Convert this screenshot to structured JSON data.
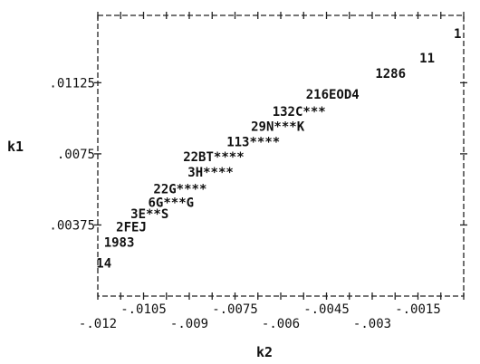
{
  "chart_data": {
    "type": "scatter",
    "title": "",
    "xlabel": "k2",
    "ylabel": "k1",
    "xlim": [
      -0.012,
      0.0
    ],
    "ylim": [
      0.0,
      0.0148
    ],
    "grid": false,
    "legend": "none",
    "x_ticks_lower": [
      "-.012",
      "-.009",
      "-.006",
      "-.003"
    ],
    "x_ticks_upper": [
      "-.0105",
      "-.0075",
      "-.0045",
      "-.0015"
    ],
    "y_ticks": [
      ".00375",
      ".0075",
      ".01125"
    ],
    "points": [
      {
        "label": "1",
        "x": -0.0002,
        "y": 0.0138
      },
      {
        "label": "11",
        "x": -0.0012,
        "y": 0.0125
      },
      {
        "label": "1286",
        "x": -0.0024,
        "y": 0.0117
      },
      {
        "label": "216EOD4",
        "x": -0.0043,
        "y": 0.0106
      },
      {
        "label": "132C***",
        "x": -0.0054,
        "y": 0.0097
      },
      {
        "label": "29N***K",
        "x": -0.0061,
        "y": 0.0089
      },
      {
        "label": "113****",
        "x": -0.0069,
        "y": 0.0081
      },
      {
        "label": "22BT****",
        "x": -0.0082,
        "y": 0.0073
      },
      {
        "label": "3H****",
        "x": -0.0083,
        "y": 0.0065
      },
      {
        "label": "22G****",
        "x": -0.0093,
        "y": 0.0056
      },
      {
        "label": "6G***G",
        "x": -0.0096,
        "y": 0.0049
      },
      {
        "label": "3E**S",
        "x": -0.0103,
        "y": 0.0043
      },
      {
        "label": "2FEJ",
        "x": -0.0109,
        "y": 0.0036
      },
      {
        "label": "1983",
        "x": -0.0113,
        "y": 0.0028
      },
      {
        "label": "14",
        "x": -0.0118,
        "y": 0.0017
      }
    ]
  }
}
